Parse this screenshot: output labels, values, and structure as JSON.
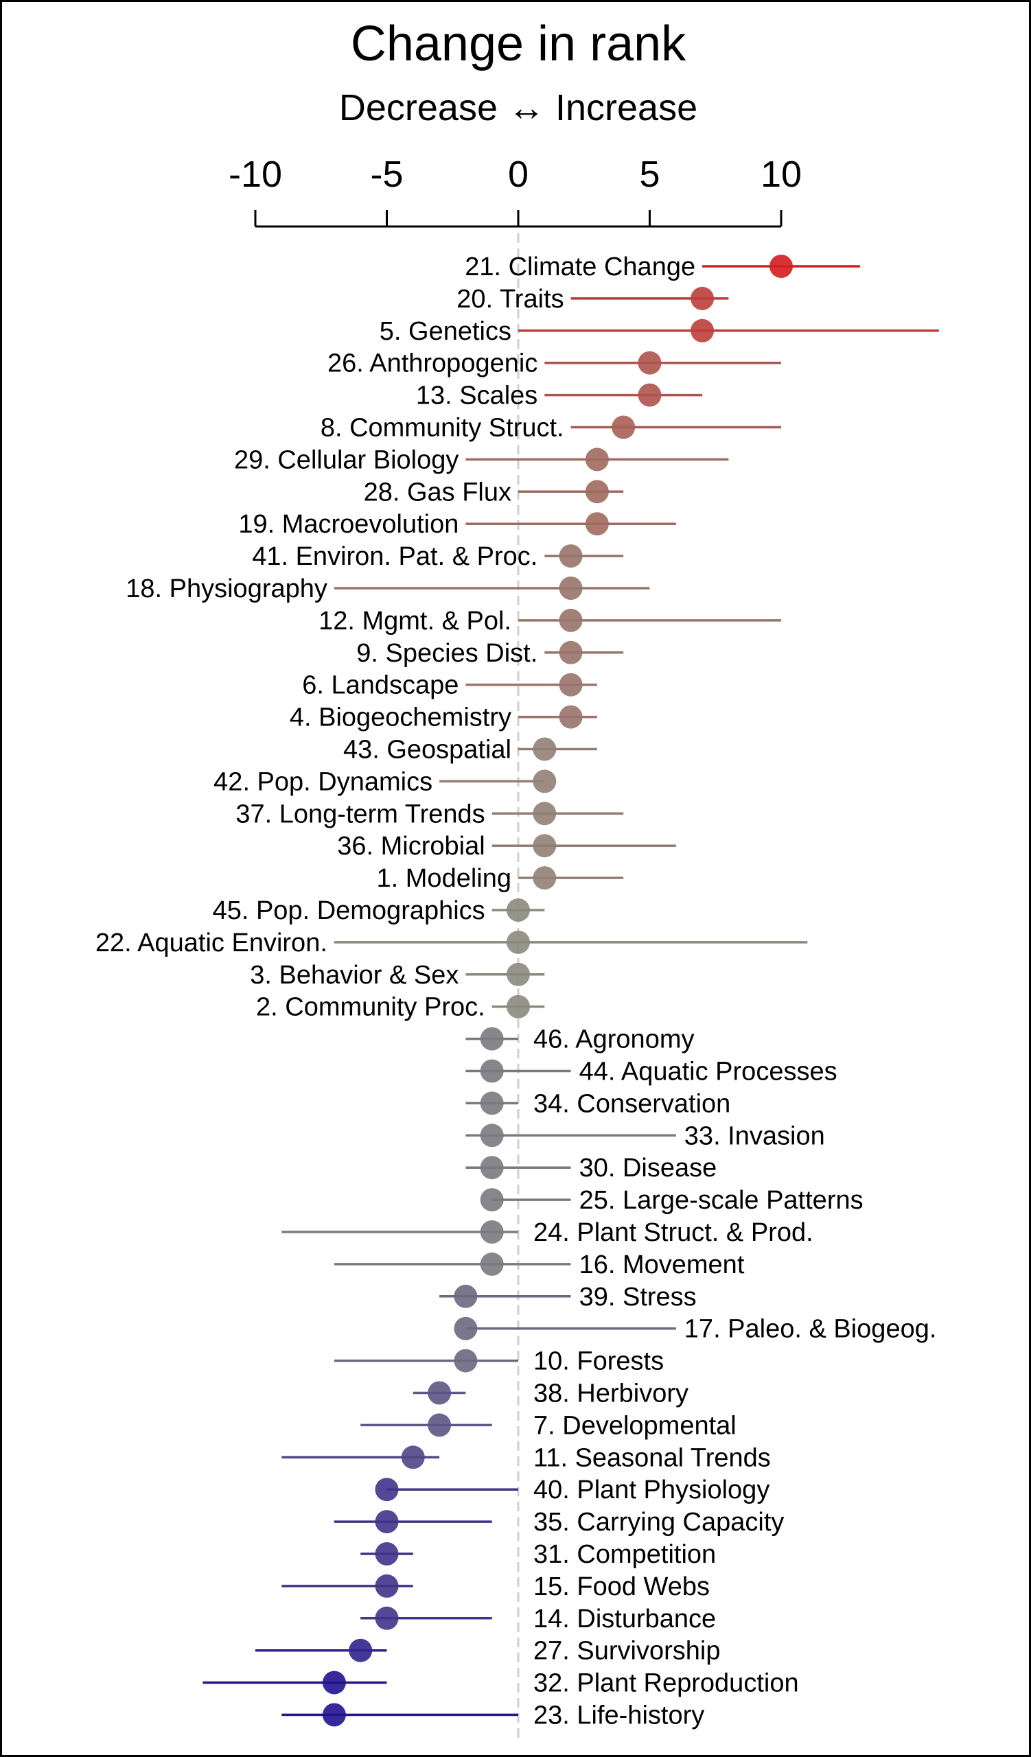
{
  "chart_data": {
    "type": "dot-interval",
    "title": "Change in rank",
    "subtitle": "Decrease ↔ Increase",
    "xlim": [
      -10,
      10
    ],
    "xticks": [
      -10,
      -5,
      0,
      5,
      10
    ],
    "xtick_labels": [
      "-10",
      "-5",
      "0",
      "5",
      "10"
    ],
    "reference_line": 0,
    "grid": false,
    "colors": {
      "positive": "#d21e1e",
      "zero": "#8a8a7c",
      "negative": "#22128f",
      "reference_line": "#cfcfcf"
    },
    "rows": [
      {
        "label": "21. Climate Change",
        "value": 10,
        "low": 7,
        "high": 13
      },
      {
        "label": "20. Traits",
        "value": 7,
        "low": 2,
        "high": 8
      },
      {
        "label": "5. Genetics",
        "value": 7,
        "low": 0,
        "high": 16
      },
      {
        "label": "26. Anthropogenic",
        "value": 5,
        "low": 1,
        "high": 10
      },
      {
        "label": "13. Scales",
        "value": 5,
        "low": 1,
        "high": 7
      },
      {
        "label": "8. Community Struct.",
        "value": 4,
        "low": 2,
        "high": 10
      },
      {
        "label": "29. Cellular Biology",
        "value": 3,
        "low": -2,
        "high": 8
      },
      {
        "label": "28. Gas Flux",
        "value": 3,
        "low": 0,
        "high": 4
      },
      {
        "label": "19. Macroevolution",
        "value": 3,
        "low": -2,
        "high": 6
      },
      {
        "label": "41. Environ. Pat. & Proc.",
        "value": 2,
        "low": 1,
        "high": 4
      },
      {
        "label": "18. Physiography",
        "value": 2,
        "low": -7,
        "high": 5
      },
      {
        "label": "12. Mgmt. & Pol.",
        "value": 2,
        "low": 0,
        "high": 10
      },
      {
        "label": "9. Species Dist.",
        "value": 2,
        "low": 1,
        "high": 4
      },
      {
        "label": "6. Landscape",
        "value": 2,
        "low": -2,
        "high": 3
      },
      {
        "label": "4. Biogeochemistry",
        "value": 2,
        "low": 0,
        "high": 3
      },
      {
        "label": "43. Geospatial",
        "value": 1,
        "low": 0,
        "high": 3
      },
      {
        "label": "42. Pop. Dynamics",
        "value": 1,
        "low": -3,
        "high": 1
      },
      {
        "label": "37. Long-term Trends",
        "value": 1,
        "low": -1,
        "high": 4
      },
      {
        "label": "36. Microbial",
        "value": 1,
        "low": -1,
        "high": 6
      },
      {
        "label": "1. Modeling",
        "value": 1,
        "low": 0,
        "high": 4
      },
      {
        "label": "45. Pop. Demographics",
        "value": 0,
        "low": -1,
        "high": 1
      },
      {
        "label": "22. Aquatic Environ.",
        "value": 0,
        "low": -7,
        "high": 11
      },
      {
        "label": "3. Behavior & Sex",
        "value": 0,
        "low": -2,
        "high": 1
      },
      {
        "label": "2. Community Proc.",
        "value": 0,
        "low": -1,
        "high": 1
      },
      {
        "label": "46. Agronomy",
        "value": -1,
        "low": -2,
        "high": 0
      },
      {
        "label": "44. Aquatic Processes",
        "value": -1,
        "low": -2,
        "high": 2
      },
      {
        "label": "34. Conservation",
        "value": -1,
        "low": -2,
        "high": 0
      },
      {
        "label": "33. Invasion",
        "value": -1,
        "low": -2,
        "high": 6
      },
      {
        "label": "30. Disease",
        "value": -1,
        "low": -2,
        "high": 2
      },
      {
        "label": "25. Large-scale Patterns",
        "value": -1,
        "low": -1,
        "high": 2
      },
      {
        "label": "24. Plant Struct. & Prod.",
        "value": -1,
        "low": -9,
        "high": 0
      },
      {
        "label": "16. Movement",
        "value": -1,
        "low": -7,
        "high": 2
      },
      {
        "label": "39. Stress",
        "value": -2,
        "low": -3,
        "high": 2
      },
      {
        "label": "17. Paleo. & Biogeog.",
        "value": -2,
        "low": -2,
        "high": 6
      },
      {
        "label": "10. Forests",
        "value": -2,
        "low": -7,
        "high": 0
      },
      {
        "label": "38. Herbivory",
        "value": -3,
        "low": -4,
        "high": -2
      },
      {
        "label": "7. Developmental",
        "value": -3,
        "low": -6,
        "high": -1
      },
      {
        "label": "11. Seasonal Trends",
        "value": -4,
        "low": -9,
        "high": -3
      },
      {
        "label": "40. Plant Physiology",
        "value": -5,
        "low": -5,
        "high": 0
      },
      {
        "label": "35. Carrying Capacity",
        "value": -5,
        "low": -7,
        "high": -1
      },
      {
        "label": "31. Competition",
        "value": -5,
        "low": -6,
        "high": -4
      },
      {
        "label": "15. Food Webs",
        "value": -5,
        "low": -9,
        "high": -4
      },
      {
        "label": "14. Disturbance",
        "value": -5,
        "low": -6,
        "high": -1
      },
      {
        "label": "27. Survivorship",
        "value": -6,
        "low": -10,
        "high": -5
      },
      {
        "label": "32. Plant Reproduction",
        "value": -7,
        "low": -12,
        "high": -5
      },
      {
        "label": "23. Life-history",
        "value": -7,
        "low": -9,
        "high": 0
      }
    ]
  }
}
